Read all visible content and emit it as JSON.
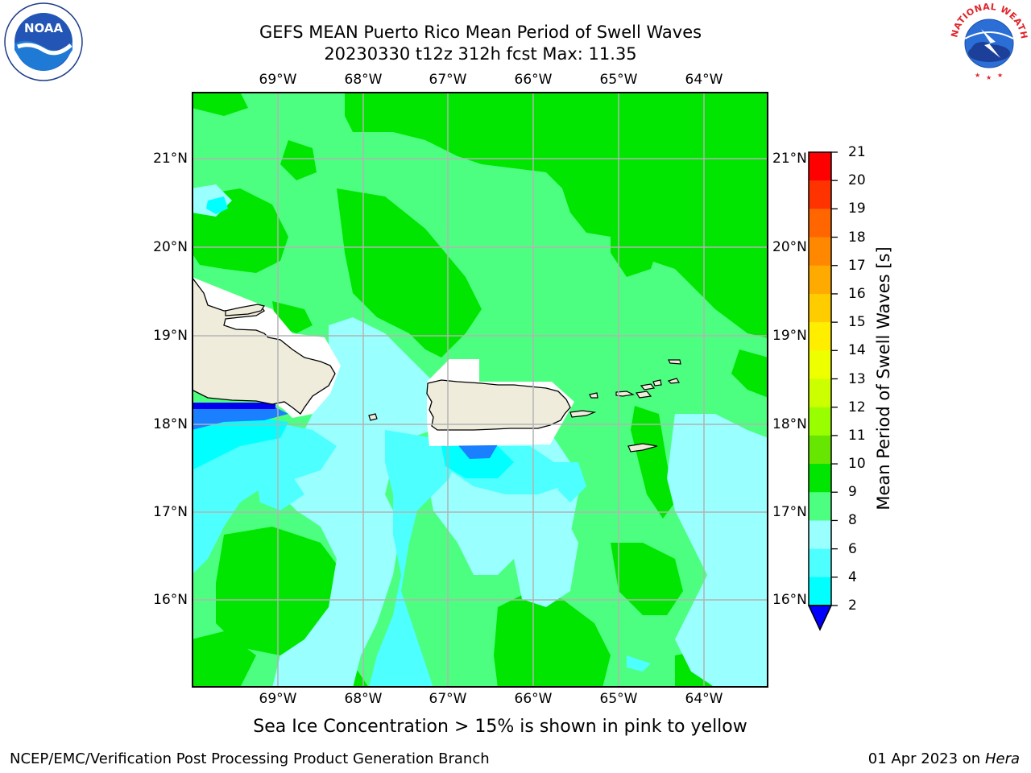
{
  "title": {
    "line1": "GEFS MEAN Puerto Rico Mean Period of Swell Waves",
    "line2": "20230330 t12z 312h fcst   Max: 11.35"
  },
  "logos": {
    "left": {
      "name": "noaa-logo",
      "text": "NOAA",
      "ring_text": "NATIONAL OCEANIC AND ATMOSPHERIC ADMINISTRATION · U.S. DEPARTMENT OF COMMERCE"
    },
    "right": {
      "name": "nws-logo",
      "ring_text": "NATIONAL WEATHER SERVICE"
    }
  },
  "map": {
    "longitude_labels": [
      "69°W",
      "68°W",
      "67°W",
      "66°W",
      "65°W",
      "64°W"
    ],
    "latitude_labels": [
      "21°N",
      "20°N",
      "19°N",
      "18°N",
      "17°N",
      "16°N"
    ],
    "colors": {
      "ocean_deep_green": "#00e600",
      "ocean_light_green": "#4dff80",
      "ocean_pale_cyan": "#99ffff",
      "ocean_cyan": "#4dffff",
      "ocean_bright_cyan": "#00ffff",
      "ocean_blue": "#1a80ff",
      "land": "#efecdc",
      "grid": "#b3b3b3"
    }
  },
  "colorbar": {
    "title": "Mean Period of Swell Waves [s]",
    "labels": [
      "21",
      "20",
      "19",
      "18",
      "17",
      "16",
      "15",
      "14",
      "13",
      "12",
      "11",
      "10",
      "9",
      "8",
      "6",
      "4",
      "2"
    ],
    "colors": [
      "#ff0000",
      "#ff3300",
      "#ff6600",
      "#ff8800",
      "#ffaa00",
      "#ffcc00",
      "#ffee00",
      "#eeff00",
      "#ccff00",
      "#99ff00",
      "#66e600",
      "#00e600",
      "#4dff80",
      "#99ffff",
      "#4dffff",
      "#00ffff",
      "#0080ff"
    ],
    "extend_color": "#0000ff"
  },
  "subcaption": "Sea Ice Concentration > 15% is shown in pink to yellow",
  "footer": {
    "left": "NCEP/EMC/Verification Post Processing Product Generation Branch",
    "right_date": "01 Apr 2023 on ",
    "right_machine": "Hera"
  }
}
